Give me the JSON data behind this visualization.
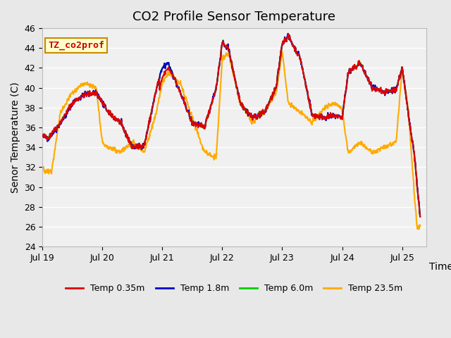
{
  "title": "CO2 Profile Sensor Temperature",
  "ylabel": "Senor Temperature (C)",
  "xlabel": "Time",
  "annotation_text": "TZ_co2prof",
  "annotation_color": "#cc0000",
  "annotation_bg": "#ffffcc",
  "annotation_border": "#cc8800",
  "ylim": [
    24,
    46
  ],
  "background_color": "#e8e8e8",
  "plot_bg": "#f0f0f0",
  "grid_color": "#ffffff",
  "series": [
    {
      "label": "Temp 0.35m",
      "color": "#dd0000",
      "lw": 1.5
    },
    {
      "label": "Temp 1.8m",
      "color": "#0000cc",
      "lw": 1.5
    },
    {
      "label": "Temp 6.0m",
      "color": "#00cc00",
      "lw": 1.5
    },
    {
      "label": "Temp 23.5m",
      "color": "#ffaa00",
      "lw": 1.5
    }
  ],
  "xtick_labels": [
    "Jul 19",
    "Jul 20",
    "Jul 21",
    "Jul 22",
    "Jul 23",
    "Jul 24",
    "Jul 25"
  ],
  "ytick_values": [
    24,
    26,
    28,
    30,
    32,
    34,
    36,
    38,
    40,
    42,
    44,
    46
  ],
  "title_fontsize": 13,
  "label_fontsize": 10,
  "tick_fontsize": 9,
  "legend_fontsize": 9,
  "xp6": [
    0.0,
    0.1,
    0.3,
    0.5,
    0.7,
    0.9,
    1.1,
    1.3,
    1.5,
    1.7,
    1.9,
    2.0,
    2.1,
    2.3,
    2.5,
    2.7,
    2.9,
    3.0,
    3.1,
    3.3,
    3.5,
    3.7,
    3.9,
    4.0,
    4.1,
    4.3,
    4.5,
    4.7,
    4.9,
    5.0,
    5.1,
    5.3,
    5.5,
    5.7,
    5.9,
    6.0,
    6.1,
    6.2,
    6.3
  ],
  "yp6": [
    35.2,
    35.0,
    36.5,
    38.5,
    39.3,
    39.5,
    37.5,
    36.5,
    34.0,
    34.2,
    39.8,
    42.0,
    42.5,
    39.5,
    36.5,
    36.0,
    40.0,
    44.5,
    44.0,
    38.5,
    37.0,
    37.5,
    40.0,
    44.5,
    45.2,
    43.0,
    37.2,
    37.0,
    37.2,
    37.0,
    41.5,
    42.5,
    40.0,
    39.5,
    39.8,
    42.0,
    37.5,
    33.5,
    27.0
  ],
  "xpo": [
    0.0,
    0.05,
    0.1,
    0.15,
    0.3,
    0.5,
    0.7,
    0.9,
    1.0,
    1.1,
    1.3,
    1.5,
    1.7,
    1.9,
    2.0,
    2.1,
    2.2,
    2.3,
    2.5,
    2.7,
    2.9,
    3.0,
    3.1,
    3.3,
    3.5,
    3.7,
    3.9,
    4.0,
    4.1,
    4.3,
    4.5,
    4.7,
    4.9,
    5.0,
    5.1,
    5.3,
    5.5,
    5.7,
    5.9,
    6.0,
    6.1,
    6.2,
    6.25,
    6.3
  ],
  "ypo": [
    32.0,
    31.5,
    31.7,
    31.5,
    37.5,
    39.5,
    40.5,
    40.0,
    34.5,
    34.0,
    33.5,
    34.5,
    33.5,
    37.5,
    40.5,
    41.5,
    41.0,
    40.5,
    37.0,
    33.5,
    33.0,
    43.0,
    43.5,
    38.5,
    36.5,
    37.5,
    39.5,
    43.7,
    38.5,
    37.5,
    36.5,
    38.0,
    38.5,
    37.8,
    33.5,
    34.5,
    33.5,
    34.0,
    34.5,
    42.0,
    38.0,
    29.5,
    26.0,
    26.0
  ]
}
